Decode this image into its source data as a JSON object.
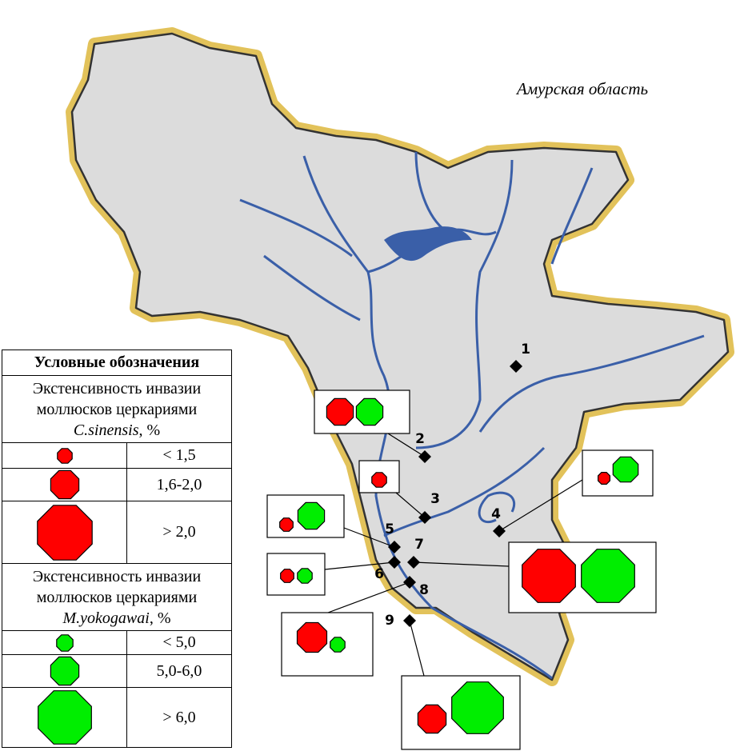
{
  "map_label": "Амурская область",
  "legend": {
    "title": "Условные обозначения",
    "sections": [
      {
        "intro": "Экстенсивность инвазии моллюсков церкариями",
        "species": "C.sinensis",
        "unit": ", %",
        "classes": [
          "< 1,5",
          "1,6-2,0",
          "> 2,0"
        ]
      },
      {
        "intro": "Экстенсивность инвазии моллюсков церкариями",
        "species": "M.yokogawai",
        "unit": ", %",
        "classes": [
          "< 5,0",
          "5,0-6,0",
          "> 6,0"
        ]
      }
    ]
  },
  "sites": [
    "1",
    "2",
    "3",
    "4",
    "5",
    "6",
    "7",
    "8",
    "9"
  ]
}
